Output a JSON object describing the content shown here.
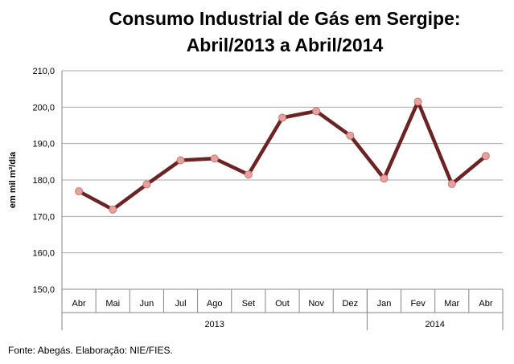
{
  "chart_data": {
    "type": "line",
    "title_lines": [
      "Consumo Industrial de Gás em Sergipe:",
      "Abril/2013 a Abril/2014"
    ],
    "ylabel": "em mil m³/dia",
    "xlabel": "",
    "categories": [
      "Abr",
      "Mai",
      "Jun",
      "Jul",
      "Ago",
      "Set",
      "Out",
      "Nov",
      "Dez",
      "Jan",
      "Fev",
      "Mar",
      "Abr"
    ],
    "year_groups": [
      {
        "label": "2013",
        "start_index": 0,
        "end_index": 8
      },
      {
        "label": "2014",
        "start_index": 9,
        "end_index": 12
      }
    ],
    "series": [
      {
        "name": "Consumo Industrial de Gás",
        "values": [
          176.9,
          171.9,
          178.8,
          185.4,
          185.9,
          181.5,
          197.1,
          198.9,
          192.2,
          180.4,
          201.5,
          178.9,
          186.6
        ]
      }
    ],
    "ylim": [
      150,
      210
    ],
    "yticks": [
      "150,0",
      "160,0",
      "170,0",
      "180,0",
      "190,0",
      "200,0",
      "210,0"
    ],
    "grid": true,
    "colors": {
      "line": "#6b2423",
      "marker_fill": "#e8a19d",
      "marker_stroke": "#c07a76",
      "grid": "#a6a6a6",
      "axis": "#868686"
    }
  },
  "footer": {
    "source": "Fonte: Abegás. Elaboração: NIE/FIES."
  }
}
